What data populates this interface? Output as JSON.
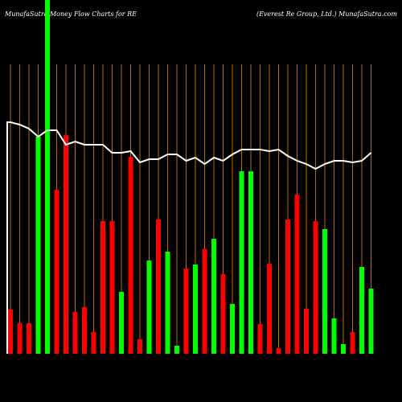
{
  "chart_data": {
    "type": "bar",
    "title": "MunafaSutra  Money Flow  Charts for RE",
    "subtitle": "(Everest Re    Group,  Ltd.) MunafaSutra.com",
    "categories": [
      null,
      null,
      null,
      null,
      null,
      null,
      null,
      null,
      null,
      null,
      null,
      null,
      null,
      null,
      null,
      null,
      null,
      null,
      null,
      null,
      null,
      null,
      null,
      null,
      null,
      null,
      null,
      null,
      null,
      null,
      null,
      null,
      null,
      null,
      null,
      null,
      null,
      null,
      null,
      null
    ],
    "values": [
      55,
      38,
      38,
      270,
      440,
      204,
      272,
      52,
      58,
      27,
      165,
      165,
      77,
      245,
      18,
      116,
      167,
      127,
      10,
      106,
      111,
      130,
      143,
      99,
      62,
      227,
      227,
      37,
      112,
      7,
      167,
      198,
      56,
      165,
      155,
      44,
      12,
      27,
      108,
      81
    ],
    "colors": [
      "#ff0000",
      "#ff0000",
      "#ff0000",
      "#00ff00",
      "#00ff00",
      "#ff0000",
      "#ff0000",
      "#ff0000",
      "#ff0000",
      "#ff0000",
      "#ff0000",
      "#ff0000",
      "#00ff00",
      "#ff0000",
      "#ff0000",
      "#00ff00",
      "#ff0000",
      "#00ff00",
      "#00ff00",
      "#ff0000",
      "#00ff00",
      "#ff0000",
      "#00ff00",
      "#ff0000",
      "#00ff00",
      "#00ff00",
      "#00ff00",
      "#ff0000",
      "#ff0000",
      "#ff0000",
      "#ff0000",
      "#ff0000",
      "#ff0000",
      "#ff0000",
      "#00ff00",
      "#00ff00",
      "#00ff00",
      "#ff0000",
      "#00ff00",
      "#00ff00"
    ],
    "line": {
      "color": "#ffffff",
      "values": [
        288,
        285,
        280,
        270,
        278,
        278,
        260,
        264,
        260,
        260,
        260,
        250,
        250,
        252,
        238,
        242,
        242,
        248,
        248,
        240,
        244,
        236,
        244,
        240,
        248,
        254,
        254,
        254,
        252,
        254,
        246,
        240,
        236,
        230,
        236,
        240,
        240,
        238,
        240,
        250
      ]
    },
    "ylim": [
      0,
      440
    ]
  }
}
